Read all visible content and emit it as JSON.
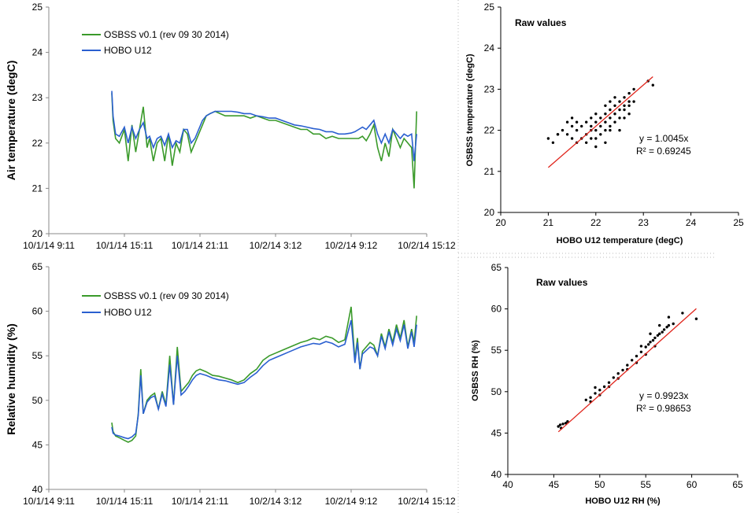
{
  "chart_data": [
    {
      "type": "line",
      "ylabel": "Air temperature (degC)",
      "ylim": [
        20,
        25
      ],
      "yticks": [
        "20",
        "21",
        "22",
        "23",
        "24",
        "25"
      ],
      "xlim": [
        0,
        30
      ],
      "xticks": [
        "10/1/14 9:11",
        "10/1/14 15:11",
        "10/1/14 21:11",
        "10/2/14 3:12",
        "10/2/14 9:12",
        "10/2/14 15:12"
      ],
      "legend_position": "top-left",
      "series": [
        {
          "name": "OSBSS v0.1 (rev 09 30 2014)",
          "color": "#3a9a2a",
          "x": [
            5.0,
            5.1,
            5.3,
            5.6,
            6.0,
            6.3,
            6.6,
            6.9,
            7.2,
            7.5,
            7.8,
            8.0,
            8.3,
            8.6,
            8.9,
            9.2,
            9.5,
            9.8,
            10.1,
            10.4,
            10.7,
            11.0,
            11.3,
            11.6,
            11.9,
            12.2,
            12.5,
            12.8,
            13.2,
            13.6,
            14.0,
            14.5,
            15.0,
            15.5,
            16.0,
            16.5,
            17.0,
            17.5,
            18.0,
            18.5,
            19.0,
            19.5,
            20.0,
            20.5,
            21.0,
            21.5,
            22.0,
            22.5,
            23.0,
            23.5,
            24.0,
            24.3,
            24.6,
            24.9,
            25.2,
            25.5,
            25.8,
            26.1,
            26.4,
            26.7,
            27.0,
            27.3,
            27.6,
            27.9,
            28.2,
            28.5,
            28.8,
            29.0,
            29.2
          ],
          "values": [
            23.1,
            22.5,
            22.1,
            22.0,
            22.3,
            21.6,
            22.4,
            21.8,
            22.3,
            22.8,
            21.9,
            22.1,
            21.6,
            22.0,
            22.1,
            21.6,
            22.2,
            21.5,
            22.0,
            21.8,
            22.3,
            22.2,
            21.8,
            22.0,
            22.2,
            22.4,
            22.6,
            22.65,
            22.7,
            22.65,
            22.6,
            22.6,
            22.6,
            22.6,
            22.55,
            22.6,
            22.55,
            22.5,
            22.5,
            22.45,
            22.4,
            22.35,
            22.3,
            22.3,
            22.2,
            22.2,
            22.1,
            22.15,
            22.1,
            22.1,
            22.1,
            22.1,
            22.1,
            22.15,
            22.05,
            22.2,
            22.4,
            21.9,
            21.6,
            22.0,
            21.7,
            22.3,
            22.1,
            21.9,
            22.1,
            22.0,
            21.9,
            21.0,
            22.7
          ]
        },
        {
          "name": "HOBO U12",
          "color": "#2a5fd0",
          "x": [
            5.0,
            5.1,
            5.3,
            5.6,
            6.0,
            6.3,
            6.6,
            6.9,
            7.2,
            7.5,
            7.8,
            8.0,
            8.3,
            8.6,
            8.9,
            9.2,
            9.5,
            9.8,
            10.1,
            10.4,
            10.7,
            11.0,
            11.3,
            11.6,
            11.9,
            12.2,
            12.5,
            12.8,
            13.2,
            13.6,
            14.0,
            14.5,
            15.0,
            15.5,
            16.0,
            16.5,
            17.0,
            17.5,
            18.0,
            18.5,
            19.0,
            19.5,
            20.0,
            20.5,
            21.0,
            21.5,
            22.0,
            22.5,
            23.0,
            23.5,
            24.0,
            24.3,
            24.6,
            24.9,
            25.2,
            25.5,
            25.8,
            26.1,
            26.4,
            26.7,
            27.0,
            27.3,
            27.6,
            27.9,
            28.2,
            28.5,
            28.8,
            29.0,
            29.2
          ],
          "values": [
            23.15,
            22.6,
            22.2,
            22.15,
            22.35,
            22.0,
            22.35,
            22.1,
            22.3,
            22.45,
            22.1,
            22.15,
            21.9,
            22.1,
            22.15,
            21.95,
            22.2,
            21.9,
            22.05,
            22.0,
            22.3,
            22.3,
            22.0,
            22.1,
            22.3,
            22.5,
            22.6,
            22.65,
            22.7,
            22.7,
            22.7,
            22.7,
            22.68,
            22.65,
            22.65,
            22.6,
            22.58,
            22.55,
            22.55,
            22.5,
            22.45,
            22.4,
            22.38,
            22.35,
            22.32,
            22.3,
            22.25,
            22.25,
            22.2,
            22.2,
            22.22,
            22.25,
            22.3,
            22.35,
            22.3,
            22.4,
            22.5,
            22.2,
            22.0,
            22.2,
            22.0,
            22.3,
            22.2,
            22.1,
            22.2,
            22.15,
            22.2,
            21.6,
            22.2
          ]
        }
      ]
    },
    {
      "type": "line",
      "ylabel": "Relative humidity (%)",
      "ylim": [
        40,
        65
      ],
      "yticks": [
        "40",
        "45",
        "50",
        "55",
        "60",
        "65"
      ],
      "xlim": [
        0,
        30
      ],
      "xticks": [
        "10/1/14 9:11",
        "10/1/14 15:11",
        "10/1/14 21:11",
        "10/2/14 3:12",
        "10/2/14 9:12",
        "10/2/14 15:12"
      ],
      "legend_position": "top-left",
      "series": [
        {
          "name": "OSBSS v0.1 (rev 09 30 2014)",
          "color": "#3a9a2a",
          "x": [
            5.0,
            5.1,
            5.3,
            5.6,
            6.0,
            6.3,
            6.6,
            6.9,
            7.1,
            7.3,
            7.5,
            7.8,
            8.1,
            8.4,
            8.7,
            9.0,
            9.3,
            9.6,
            9.9,
            10.2,
            10.5,
            10.8,
            11.1,
            11.4,
            11.7,
            12.0,
            12.5,
            13.0,
            13.5,
            14.0,
            14.5,
            15.0,
            15.5,
            16.0,
            16.5,
            17.0,
            17.5,
            18.0,
            18.5,
            19.0,
            19.5,
            20.0,
            20.5,
            21.0,
            21.5,
            22.0,
            22.5,
            23.0,
            23.5,
            24.0,
            24.3,
            24.5,
            24.7,
            24.9,
            25.2,
            25.5,
            25.8,
            26.1,
            26.4,
            26.7,
            27.0,
            27.3,
            27.6,
            27.9,
            28.2,
            28.5,
            28.8,
            29.0,
            29.2
          ],
          "values": [
            47.5,
            46.5,
            46.0,
            45.8,
            45.5,
            45.3,
            45.5,
            46.0,
            48.5,
            53.5,
            48.5,
            50.0,
            50.5,
            50.8,
            49.0,
            51.0,
            49.5,
            55.0,
            49.5,
            56.0,
            51.0,
            51.5,
            52.0,
            52.8,
            53.3,
            53.5,
            53.2,
            52.8,
            52.7,
            52.5,
            52.3,
            52.0,
            52.3,
            53.0,
            53.5,
            54.5,
            55.0,
            55.3,
            55.6,
            55.9,
            56.2,
            56.5,
            56.7,
            57.0,
            56.8,
            57.2,
            57.0,
            56.5,
            56.8,
            60.5,
            54.5,
            57.0,
            53.5,
            55.5,
            56.0,
            56.5,
            56.2,
            55.0,
            57.5,
            56.0,
            58.0,
            56.5,
            58.5,
            57.0,
            59.0,
            56.0,
            58.0,
            56.5,
            59.5
          ]
        },
        {
          "name": "HOBO U12",
          "color": "#2a5fd0",
          "x": [
            5.0,
            5.1,
            5.3,
            5.6,
            6.0,
            6.3,
            6.6,
            6.9,
            7.1,
            7.3,
            7.5,
            7.8,
            8.1,
            8.4,
            8.7,
            9.0,
            9.3,
            9.6,
            9.9,
            10.2,
            10.5,
            10.8,
            11.1,
            11.4,
            11.7,
            12.0,
            12.5,
            13.0,
            13.5,
            14.0,
            14.5,
            15.0,
            15.5,
            16.0,
            16.5,
            17.0,
            17.5,
            18.0,
            18.5,
            19.0,
            19.5,
            20.0,
            20.5,
            21.0,
            21.5,
            22.0,
            22.5,
            23.0,
            23.5,
            24.0,
            24.3,
            24.5,
            24.7,
            24.9,
            25.2,
            25.5,
            25.8,
            26.1,
            26.4,
            26.7,
            27.0,
            27.3,
            27.6,
            27.9,
            28.2,
            28.5,
            28.8,
            29.0,
            29.2
          ],
          "values": [
            47.0,
            46.3,
            46.1,
            46.0,
            45.8,
            45.7,
            45.9,
            46.3,
            48.3,
            52.8,
            48.5,
            49.8,
            50.3,
            50.5,
            49.0,
            50.7,
            49.3,
            54.0,
            49.5,
            55.0,
            50.6,
            51.0,
            51.6,
            52.3,
            52.8,
            53.0,
            52.8,
            52.5,
            52.3,
            52.2,
            52.0,
            51.8,
            52.0,
            52.6,
            53.1,
            53.9,
            54.5,
            54.8,
            55.1,
            55.4,
            55.7,
            56.0,
            56.2,
            56.4,
            56.3,
            56.6,
            56.4,
            56.0,
            56.3,
            59.0,
            54.2,
            56.5,
            53.5,
            55.2,
            55.6,
            56.0,
            55.8,
            55.0,
            57.2,
            55.8,
            57.7,
            56.2,
            58.0,
            56.7,
            58.5,
            55.8,
            57.7,
            56.0,
            58.5
          ]
        }
      ]
    },
    {
      "type": "scatter",
      "xlabel": "HOBO U12 temperature (degC)",
      "ylabel": "OSBSS temperature (degC)",
      "xlim": [
        20,
        25
      ],
      "ylim": [
        20,
        25
      ],
      "xticks": [
        "20",
        "21",
        "22",
        "23",
        "24",
        "25"
      ],
      "yticks": [
        "20",
        "21",
        "22",
        "23",
        "24",
        "25"
      ],
      "annotation": "Raw values",
      "equation": "y = 1.0045x",
      "r2": "R² = 0.69245",
      "slope": 1.0045,
      "points": [
        [
          21.0,
          21.8
        ],
        [
          21.1,
          21.7
        ],
        [
          21.2,
          21.9
        ],
        [
          21.3,
          22.0
        ],
        [
          21.4,
          21.9
        ],
        [
          21.5,
          22.1
        ],
        [
          21.5,
          21.8
        ],
        [
          21.6,
          22.0
        ],
        [
          21.6,
          21.7
        ],
        [
          21.7,
          22.1
        ],
        [
          21.7,
          21.8
        ],
        [
          21.8,
          22.2
        ],
        [
          21.8,
          21.9
        ],
        [
          21.8,
          21.7
        ],
        [
          21.9,
          22.1
        ],
        [
          21.9,
          22.3
        ],
        [
          21.9,
          21.8
        ],
        [
          22.0,
          22.0
        ],
        [
          22.0,
          22.2
        ],
        [
          22.0,
          22.4
        ],
        [
          22.0,
          21.8
        ],
        [
          22.1,
          22.1
        ],
        [
          22.1,
          22.3
        ],
        [
          22.1,
          21.9
        ],
        [
          22.2,
          22.2
        ],
        [
          22.2,
          22.4
        ],
        [
          22.2,
          22.0
        ],
        [
          22.2,
          21.7
        ],
        [
          22.3,
          22.3
        ],
        [
          22.3,
          22.1
        ],
        [
          22.3,
          22.5
        ],
        [
          22.3,
          22.7
        ],
        [
          22.4,
          22.4
        ],
        [
          22.4,
          22.2
        ],
        [
          22.4,
          22.6
        ],
        [
          22.5,
          22.5
        ],
        [
          22.5,
          22.3
        ],
        [
          22.5,
          22.7
        ],
        [
          22.5,
          22.0
        ],
        [
          22.6,
          22.6
        ],
        [
          22.6,
          22.5
        ],
        [
          22.6,
          22.8
        ],
        [
          22.6,
          22.3
        ],
        [
          22.7,
          22.7
        ],
        [
          22.7,
          22.6
        ],
        [
          22.7,
          22.9
        ],
        [
          22.7,
          22.4
        ],
        [
          22.8,
          22.7
        ],
        [
          22.8,
          23.0
        ],
        [
          23.1,
          23.2
        ],
        [
          23.2,
          23.1
        ],
        [
          21.5,
          22.3
        ],
        [
          21.2,
          21.9
        ],
        [
          21.6,
          22.2
        ],
        [
          22.0,
          21.6
        ],
        [
          21.4,
          22.2
        ],
        [
          22.2,
          22.6
        ],
        [
          22.4,
          22.8
        ],
        [
          21.9,
          22.0
        ],
        [
          22.3,
          22.0
        ]
      ]
    },
    {
      "type": "scatter",
      "xlabel": "HOBO U12 RH (%)",
      "ylabel": "OSBSS RH (%)",
      "xlim": [
        40,
        65
      ],
      "ylim": [
        40,
        65
      ],
      "xticks": [
        "40",
        "45",
        "50",
        "55",
        "60",
        "65"
      ],
      "yticks": [
        "40",
        "45",
        "50",
        "55",
        "60",
        "65"
      ],
      "annotation": "Raw values",
      "equation": "y = 0.9923x",
      "r2": "R² = 0.98653",
      "slope": 0.9923,
      "points": [
        [
          45.5,
          45.8
        ],
        [
          45.7,
          46.0
        ],
        [
          46.0,
          46.1
        ],
        [
          46.3,
          46.2
        ],
        [
          46.5,
          46.4
        ],
        [
          45.8,
          45.6
        ],
        [
          48.5,
          49.0
        ],
        [
          49.0,
          49.3
        ],
        [
          49.5,
          49.8
        ],
        [
          50.0,
          50.2
        ],
        [
          50.5,
          50.6
        ],
        [
          51.0,
          51.1
        ],
        [
          51.5,
          51.7
        ],
        [
          52.0,
          52.2
        ],
        [
          52.5,
          52.6
        ],
        [
          53.0,
          53.2
        ],
        [
          53.5,
          53.8
        ],
        [
          54.0,
          54.3
        ],
        [
          54.5,
          54.8
        ],
        [
          55.0,
          55.4
        ],
        [
          55.3,
          55.7
        ],
        [
          55.5,
          56.0
        ],
        [
          55.8,
          56.2
        ],
        [
          56.0,
          56.5
        ],
        [
          56.3,
          56.8
        ],
        [
          56.5,
          57.0
        ],
        [
          56.8,
          57.2
        ],
        [
          57.0,
          57.5
        ],
        [
          57.3,
          57.8
        ],
        [
          57.5,
          58.0
        ],
        [
          58.0,
          58.2
        ],
        [
          59.0,
          59.5
        ],
        [
          60.5,
          58.8
        ],
        [
          54.0,
          53.5
        ],
        [
          55.0,
          54.5
        ],
        [
          56.0,
          55.5
        ],
        [
          53.0,
          52.7
        ],
        [
          52.0,
          51.6
        ],
        [
          51.0,
          50.6
        ],
        [
          50.0,
          49.6
        ],
        [
          49.0,
          48.8
        ],
        [
          55.5,
          57.0
        ],
        [
          56.5,
          58.0
        ],
        [
          57.5,
          59.0
        ],
        [
          54.5,
          55.5
        ],
        [
          49.5,
          50.5
        ]
      ]
    }
  ]
}
